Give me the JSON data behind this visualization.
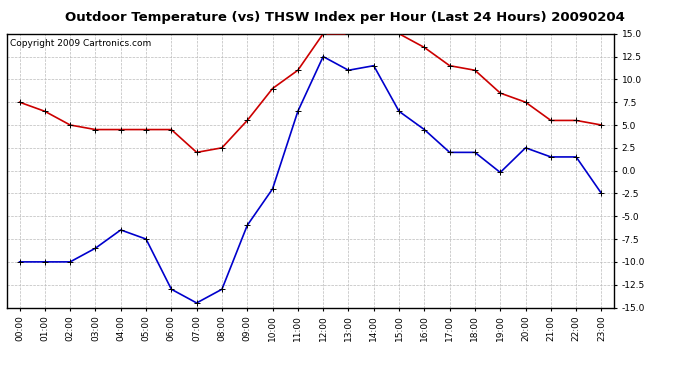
{
  "title": "Outdoor Temperature (vs) THSW Index per Hour (Last 24 Hours) 20090204",
  "copyright": "Copyright 2009 Cartronics.com",
  "hours": [
    "00:00",
    "01:00",
    "02:00",
    "03:00",
    "04:00",
    "05:00",
    "06:00",
    "07:00",
    "08:00",
    "09:00",
    "10:00",
    "11:00",
    "12:00",
    "13:00",
    "14:00",
    "15:00",
    "16:00",
    "17:00",
    "18:00",
    "19:00",
    "20:00",
    "21:00",
    "22:00",
    "23:00"
  ],
  "temp_red": [
    7.5,
    6.5,
    5.0,
    4.5,
    4.5,
    4.5,
    4.5,
    2.0,
    2.5,
    5.5,
    9.0,
    11.0,
    15.0,
    15.0,
    15.5,
    15.0,
    13.5,
    11.5,
    11.0,
    8.5,
    7.5,
    5.5,
    5.5,
    5.0
  ],
  "thsw_blue": [
    -10.0,
    -10.0,
    -10.0,
    -8.5,
    -6.5,
    -7.5,
    -13.0,
    -14.5,
    -13.0,
    -6.0,
    -2.0,
    6.5,
    12.5,
    11.0,
    11.5,
    6.5,
    4.5,
    2.0,
    2.0,
    -0.2,
    2.5,
    1.5,
    1.5,
    -2.5
  ],
  "red_color": "#cc0000",
  "blue_color": "#0000cc",
  "bg_color": "#ffffff",
  "plot_bg_color": "#ffffff",
  "grid_color": "#bbbbbb",
  "ylim": [
    -15.0,
    15.0
  ],
  "yticks": [
    -15.0,
    -12.5,
    -10.0,
    -7.5,
    -5.0,
    -2.5,
    0.0,
    2.5,
    5.0,
    7.5,
    10.0,
    12.5,
    15.0
  ],
  "title_fontsize": 9.5,
  "copyright_fontsize": 6.5,
  "tick_fontsize": 6.5,
  "marker": "+",
  "markersize": 5,
  "linewidth": 1.2
}
